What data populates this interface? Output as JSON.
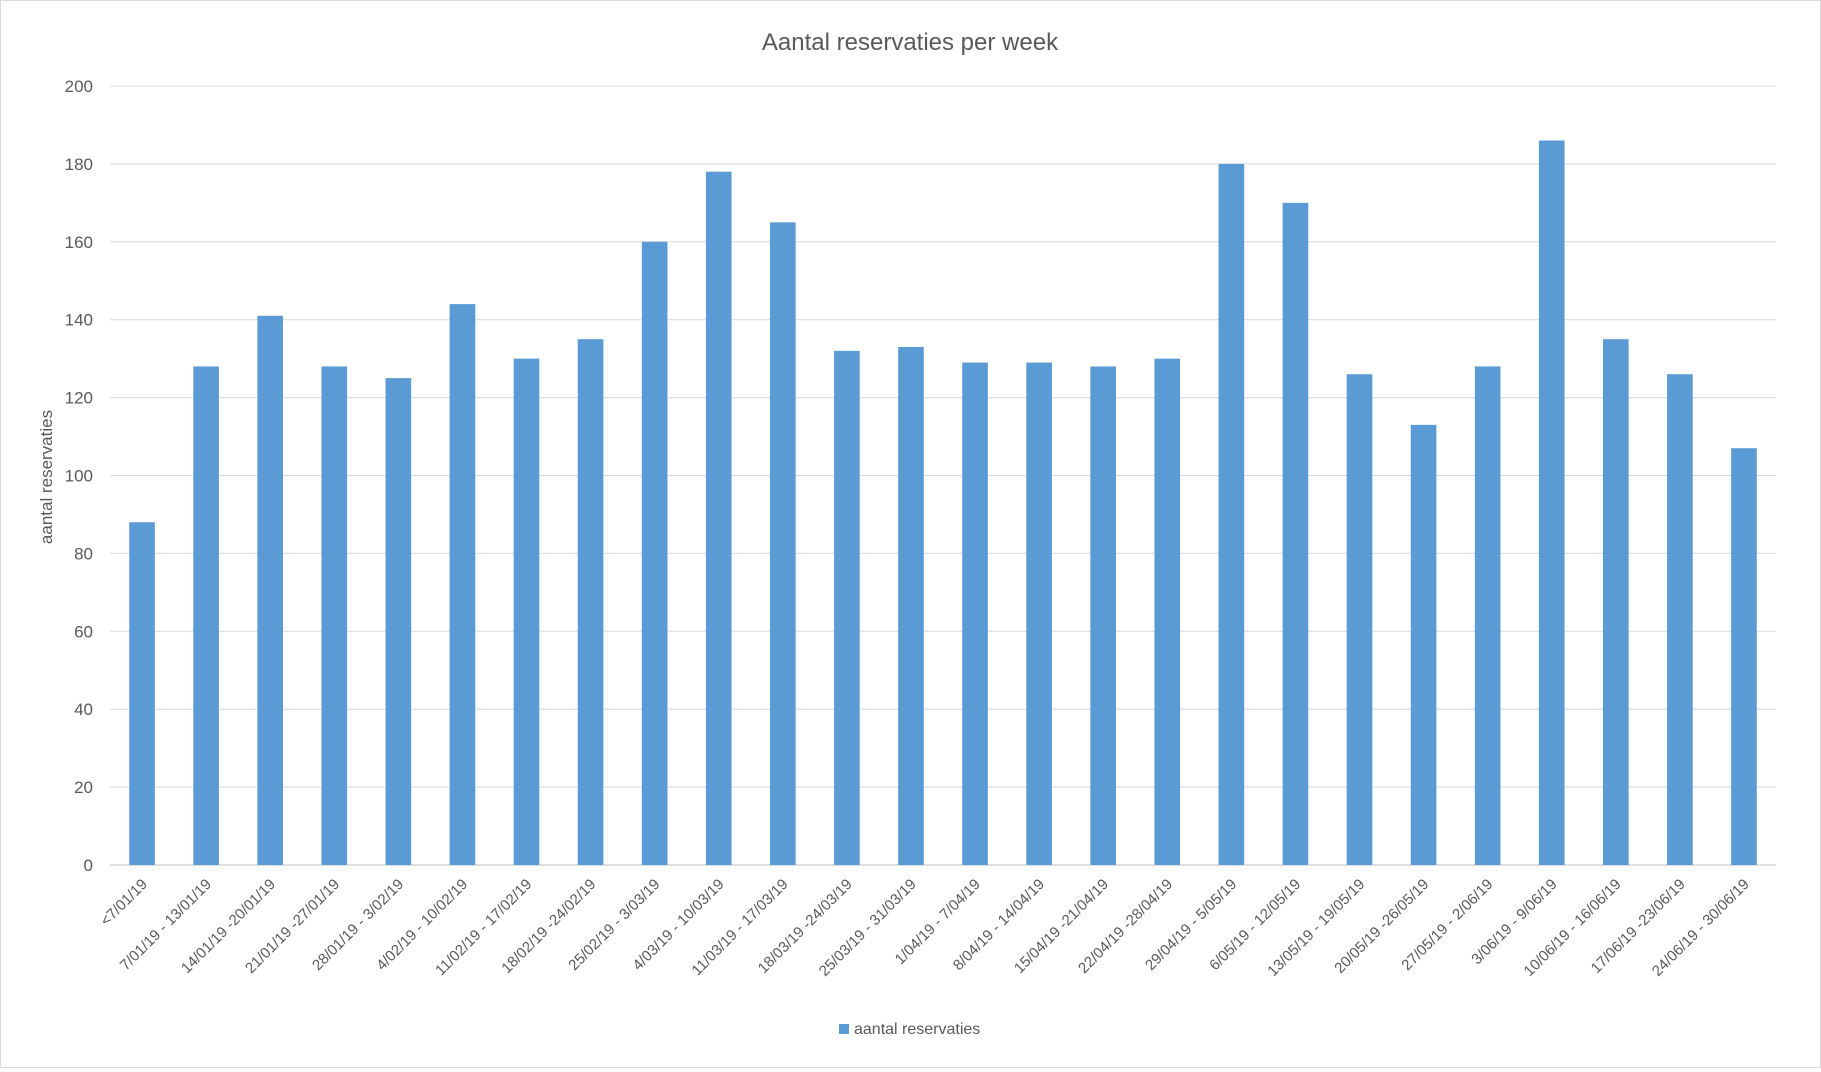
{
  "chart_data": {
    "type": "bar",
    "title": "Aantal reservaties per week",
    "xlabel": "",
    "ylabel": "aantal reservaties",
    "ylim": [
      0,
      200
    ],
    "yticks": [
      0,
      20,
      40,
      60,
      80,
      100,
      120,
      140,
      160,
      180,
      200
    ],
    "grid": true,
    "legend_position": "bottom",
    "color": "#5b9bd5",
    "categories": [
      "<7/01/19",
      "7/01/19 - 13/01/19",
      "14/01/19 -20/01/19",
      "21/01/19 -27/01/19",
      "28/01/19 - 3/02/19",
      "4/02/19 - 10/02/19",
      "11/02/19 - 17/02/19",
      "18/02/19 -24/02/19",
      "25/02/19 - 3/03/19",
      "4/03/19 - 10/03/19",
      "11/03/19 - 17/03/19",
      "18/03/19 -24/03/19",
      "25/03/19 - 31/03/19",
      "1/04/19 - 7/04/19",
      "8/04/19 - 14/04/19",
      "15/04/19 -21/04/19",
      "22/04/19 -28/04/19",
      "29/04/19 - 5/05/19",
      "6/05/19 - 12/05/19",
      "13/05/19 - 19/05/19",
      "20/05/19 -26/05/19",
      "27/05/19 - 2/06/19",
      "3/06/19 - 9/06/19",
      "10/06/19 - 16/06/19",
      "17/06/19 -23/06/19",
      "24/06/19 - 30/06/19"
    ],
    "series": [
      {
        "name": "aantal reservaties",
        "values": [
          88,
          128,
          141,
          128,
          125,
          144,
          130,
          135,
          160,
          178,
          165,
          132,
          133,
          129,
          129,
          128,
          130,
          180,
          170,
          126,
          113,
          128,
          186,
          135,
          126,
          107
        ]
      }
    ]
  }
}
